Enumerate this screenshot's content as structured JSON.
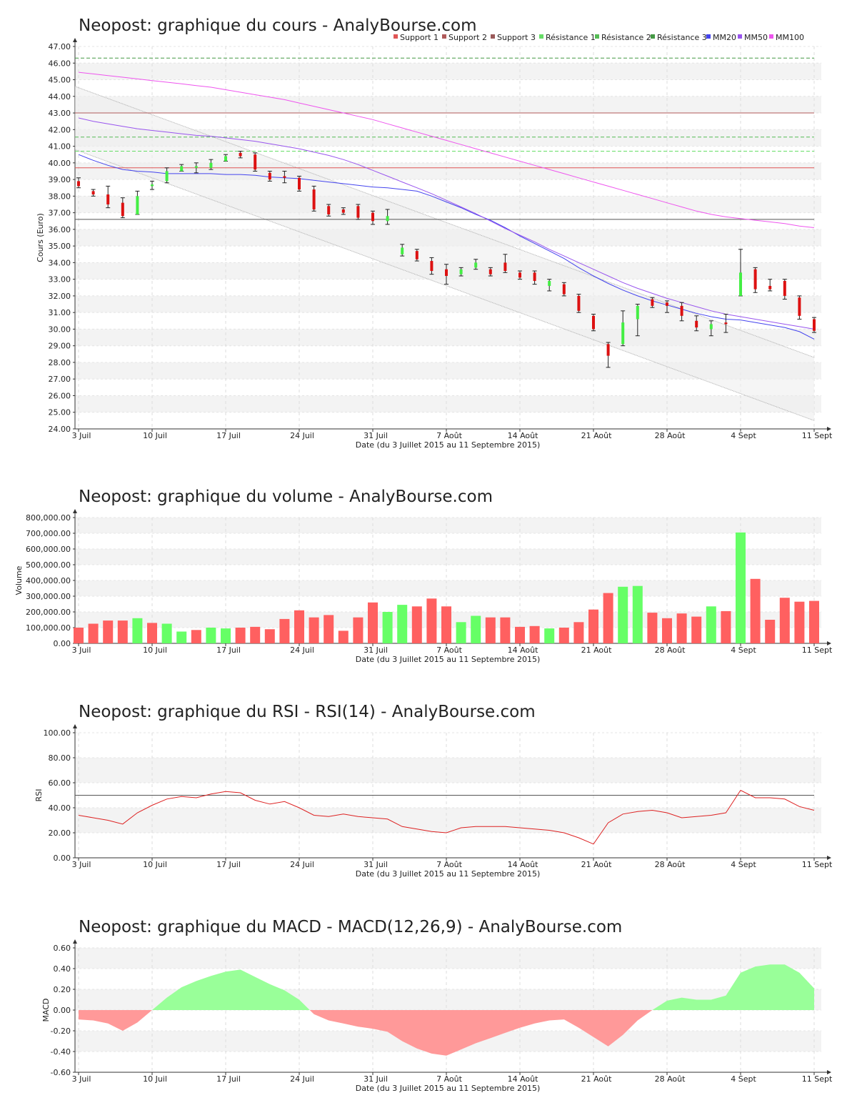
{
  "chart_data": [
    {
      "type": "candlestick",
      "title": "Neopost: graphique du cours - AnalyBourse.com",
      "xlabel": "Date (du 3 Juillet 2015 au 11 Septembre 2015)",
      "ylabel": "Cours (Euro)",
      "ylim": [
        24,
        47
      ],
      "y_ticks": [
        "24.00",
        "25.00",
        "26.00",
        "27.00",
        "28.00",
        "29.00",
        "30.00",
        "31.00",
        "32.00",
        "33.00",
        "34.00",
        "35.00",
        "36.00",
        "37.00",
        "38.00",
        "39.00",
        "40.00",
        "41.00",
        "42.00",
        "43.00",
        "44.00",
        "45.00",
        "46.00",
        "47.00"
      ],
      "x_ticks": [
        {
          "label": "3 Juil",
          "index": 0
        },
        {
          "label": "10 Juil",
          "index": 5
        },
        {
          "label": "17 Juil",
          "index": 10
        },
        {
          "label": "24 Juil",
          "index": 15
        },
        {
          "label": "31 Juil",
          "index": 20
        },
        {
          "label": "7 Août",
          "index": 25
        },
        {
          "label": "14 Août",
          "index": 30
        },
        {
          "label": "21 Août",
          "index": 35
        },
        {
          "label": "28 Août",
          "index": 40
        },
        {
          "label": "4 Sept",
          "index": 45
        },
        {
          "label": "11 Sept",
          "index": 50
        }
      ],
      "legend": [
        {
          "name": "Support 1",
          "color": "#e05555"
        },
        {
          "name": "Support 2",
          "color": "#b05a5a"
        },
        {
          "name": "Support 3",
          "color": "#9a5a5a"
        },
        {
          "name": "Résistance 1",
          "color": "#66dd66"
        },
        {
          "name": "Résistance 2",
          "color": "#55bb55"
        },
        {
          "name": "Résistance 3",
          "color": "#449944"
        },
        {
          "name": "MM20",
          "color": "#4444ee"
        },
        {
          "name": "MM50",
          "color": "#9955ee"
        },
        {
          "name": "MM100",
          "color": "#ee55ee"
        }
      ],
      "levels": {
        "support_1": 39.7,
        "support_2": 43.0,
        "support_3": 36.6,
        "resistance_1": 40.7,
        "resistance_2": 41.55,
        "resistance_3": 46.3
      },
      "colors": {
        "up": "#44ee44",
        "down": "#dd1111",
        "grid": "#cccccc",
        "band": "#f2f2f2"
      },
      "candles": [
        {
          "o": 38.9,
          "c": 38.6,
          "h": 39.1,
          "l": 38.5
        },
        {
          "o": 38.3,
          "c": 38.1,
          "h": 38.4,
          "l": 38.0
        },
        {
          "o": 38.1,
          "c": 37.5,
          "h": 38.6,
          "l": 37.3
        },
        {
          "o": 37.6,
          "c": 36.8,
          "h": 37.9,
          "l": 36.7
        },
        {
          "o": 36.9,
          "c": 38.0,
          "h": 38.3,
          "l": 36.9
        },
        {
          "o": 38.6,
          "c": 38.7,
          "h": 38.9,
          "l": 38.4
        },
        {
          "o": 38.9,
          "c": 39.5,
          "h": 39.7,
          "l": 38.8
        },
        {
          "o": 39.5,
          "c": 39.8,
          "h": 39.9,
          "l": 39.5
        },
        {
          "o": 39.7,
          "c": 39.8,
          "h": 40.0,
          "l": 39.4
        },
        {
          "o": 39.7,
          "c": 40.0,
          "h": 40.2,
          "l": 39.6
        },
        {
          "o": 40.1,
          "c": 40.4,
          "h": 40.5,
          "l": 40.1
        },
        {
          "o": 40.6,
          "c": 40.4,
          "h": 40.7,
          "l": 40.3
        },
        {
          "o": 40.5,
          "c": 39.6,
          "h": 40.6,
          "l": 39.5
        },
        {
          "o": 39.4,
          "c": 39.0,
          "h": 39.5,
          "l": 38.9
        },
        {
          "o": 39.2,
          "c": 39.1,
          "h": 39.5,
          "l": 38.8
        },
        {
          "o": 39.1,
          "c": 38.4,
          "h": 39.2,
          "l": 38.3
        },
        {
          "o": 38.4,
          "c": 37.2,
          "h": 38.6,
          "l": 37.1
        },
        {
          "o": 37.4,
          "c": 36.9,
          "h": 37.5,
          "l": 36.8
        },
        {
          "o": 37.2,
          "c": 37.0,
          "h": 37.3,
          "l": 36.9
        },
        {
          "o": 37.4,
          "c": 36.7,
          "h": 37.5,
          "l": 36.6
        },
        {
          "o": 37.0,
          "c": 36.5,
          "h": 37.1,
          "l": 36.3
        },
        {
          "o": 36.5,
          "c": 36.8,
          "h": 37.2,
          "l": 36.3
        },
        {
          "o": 34.5,
          "c": 34.9,
          "h": 35.1,
          "l": 34.4
        },
        {
          "o": 34.7,
          "c": 34.2,
          "h": 34.8,
          "l": 34.1
        },
        {
          "o": 34.1,
          "c": 33.5,
          "h": 34.3,
          "l": 33.3
        },
        {
          "o": 33.6,
          "c": 33.2,
          "h": 33.9,
          "l": 32.7
        },
        {
          "o": 33.3,
          "c": 33.6,
          "h": 33.7,
          "l": 33.2
        },
        {
          "o": 33.7,
          "c": 34.0,
          "h": 34.2,
          "l": 33.6
        },
        {
          "o": 33.6,
          "c": 33.3,
          "h": 33.7,
          "l": 33.2
        },
        {
          "o": 34.0,
          "c": 33.5,
          "h": 34.5,
          "l": 33.4
        },
        {
          "o": 33.4,
          "c": 33.1,
          "h": 33.5,
          "l": 33.0
        },
        {
          "o": 33.4,
          "c": 32.9,
          "h": 33.5,
          "l": 32.7
        },
        {
          "o": 32.6,
          "c": 32.9,
          "h": 33.0,
          "l": 32.3
        },
        {
          "o": 32.7,
          "c": 32.1,
          "h": 32.8,
          "l": 32.0
        },
        {
          "o": 32.0,
          "c": 31.1,
          "h": 32.1,
          "l": 31.0
        },
        {
          "o": 30.8,
          "c": 30.0,
          "h": 30.9,
          "l": 29.9
        },
        {
          "o": 29.1,
          "c": 28.4,
          "h": 29.2,
          "l": 27.7
        },
        {
          "o": 29.1,
          "c": 30.4,
          "h": 31.1,
          "l": 29.0
        },
        {
          "o": 30.6,
          "c": 31.4,
          "h": 31.5,
          "l": 29.6
        },
        {
          "o": 31.8,
          "c": 31.4,
          "h": 31.9,
          "l": 31.3
        },
        {
          "o": 31.6,
          "c": 31.4,
          "h": 31.7,
          "l": 31.0
        },
        {
          "o": 31.4,
          "c": 30.8,
          "h": 31.6,
          "l": 30.5
        },
        {
          "o": 30.5,
          "c": 30.1,
          "h": 30.8,
          "l": 29.9
        },
        {
          "o": 30.0,
          "c": 30.3,
          "h": 30.5,
          "l": 29.6
        },
        {
          "o": 30.4,
          "c": 30.3,
          "h": 30.9,
          "l": 29.8
        },
        {
          "o": 32.0,
          "c": 33.4,
          "h": 34.8,
          "l": 32.0
        },
        {
          "o": 33.6,
          "c": 32.4,
          "h": 33.7,
          "l": 32.2
        },
        {
          "o": 32.6,
          "c": 32.4,
          "h": 33.0,
          "l": 32.3
        },
        {
          "o": 32.9,
          "c": 32.0,
          "h": 33.0,
          "l": 31.8
        },
        {
          "o": 31.9,
          "c": 30.8,
          "h": 32.0,
          "l": 30.6
        },
        {
          "o": 30.6,
          "c": 29.9,
          "h": 30.7,
          "l": 29.8
        }
      ],
      "series": [
        {
          "name": "MM20",
          "color": "#4444ee",
          "values": [
            40.5,
            40.15,
            39.85,
            39.6,
            39.5,
            39.45,
            39.35,
            39.35,
            39.35,
            39.35,
            39.3,
            39.3,
            39.25,
            39.15,
            39.1,
            39.05,
            38.95,
            38.85,
            38.75,
            38.65,
            38.55,
            38.5,
            38.4,
            38.3,
            38.0,
            37.65,
            37.3,
            36.9,
            36.55,
            36.1,
            35.6,
            35.15,
            34.7,
            34.25,
            33.7,
            33.2,
            32.75,
            32.35,
            32.0,
            31.7,
            31.45,
            31.2,
            30.95,
            30.75,
            30.6,
            30.55,
            30.4,
            30.25,
            30.1,
            29.85,
            29.4
          ]
        },
        {
          "name": "MM50",
          "color": "#9955ee",
          "values": [
            42.7,
            42.5,
            42.35,
            42.2,
            42.05,
            41.95,
            41.85,
            41.75,
            41.65,
            41.6,
            41.5,
            41.4,
            41.3,
            41.15,
            41.0,
            40.85,
            40.65,
            40.45,
            40.2,
            39.9,
            39.55,
            39.2,
            38.85,
            38.5,
            38.15,
            37.75,
            37.35,
            36.95,
            36.5,
            36.05,
            35.65,
            35.25,
            34.8,
            34.4,
            34.0,
            33.6,
            33.2,
            32.8,
            32.45,
            32.15,
            31.85,
            31.6,
            31.35,
            31.1,
            30.9,
            30.75,
            30.6,
            30.45,
            30.3,
            30.15,
            30.0
          ]
        },
        {
          "name": "MM100",
          "color": "#ee55ee",
          "values": [
            45.45,
            45.35,
            45.25,
            45.15,
            45.05,
            44.95,
            44.85,
            44.75,
            44.65,
            44.55,
            44.4,
            44.25,
            44.1,
            43.95,
            43.8,
            43.6,
            43.4,
            43.2,
            43.0,
            42.8,
            42.6,
            42.35,
            42.1,
            41.85,
            41.6,
            41.35,
            41.1,
            40.85,
            40.6,
            40.35,
            40.1,
            39.85,
            39.6,
            39.35,
            39.1,
            38.85,
            38.6,
            38.35,
            38.1,
            37.85,
            37.6,
            37.35,
            37.1,
            36.9,
            36.75,
            36.65,
            36.55,
            36.45,
            36.35,
            36.2,
            36.1
          ]
        }
      ]
    },
    {
      "type": "bar",
      "title": "Neopost: graphique du volume - AnalyBourse.com",
      "xlabel": "Date (du 3 Juillet 2015 au 11 Septembre 2015)",
      "ylabel": "Volume",
      "ylim": [
        0,
        800000
      ],
      "y_ticks": [
        "0.00",
        "100,000.00",
        "200,000.00",
        "300,000.00",
        "400,000.00",
        "500,000.00",
        "600,000.00",
        "700,000.00",
        "800,000.00"
      ],
      "x_ticks": [
        {
          "label": "3 Juil",
          "index": 0
        },
        {
          "label": "10 Juil",
          "index": 5
        },
        {
          "label": "17 Juil",
          "index": 10
        },
        {
          "label": "24 Juil",
          "index": 15
        },
        {
          "label": "31 Juil",
          "index": 20
        },
        {
          "label": "7 Août",
          "index": 25
        },
        {
          "label": "14 Août",
          "index": 30
        },
        {
          "label": "21 Août",
          "index": 35
        },
        {
          "label": "28 Août",
          "index": 40
        },
        {
          "label": "4 Sept",
          "index": 45
        },
        {
          "label": "11 Sept",
          "index": 50
        }
      ],
      "colors": {
        "up": "#66ff66",
        "down": "#ff6060"
      },
      "values": [
        100000,
        125000,
        145000,
        145000,
        160000,
        130000,
        125000,
        75000,
        85000,
        100000,
        95000,
        100000,
        105000,
        90000,
        155000,
        210000,
        165000,
        180000,
        80000,
        165000,
        260000,
        200000,
        245000,
        235000,
        285000,
        235000,
        135000,
        175000,
        165000,
        165000,
        105000,
        110000,
        95000,
        100000,
        135000,
        215000,
        320000,
        360000,
        365000,
        195000,
        160000,
        190000,
        170000,
        235000,
        205000,
        705000,
        410000,
        150000,
        290000,
        265000,
        270000
      ],
      "direction": [
        "down",
        "down",
        "down",
        "down",
        "up",
        "down",
        "up",
        "up",
        "down",
        "up",
        "up",
        "down",
        "down",
        "down",
        "down",
        "down",
        "down",
        "down",
        "down",
        "down",
        "down",
        "up",
        "up",
        "down",
        "down",
        "down",
        "up",
        "up",
        "down",
        "down",
        "down",
        "down",
        "up",
        "down",
        "down",
        "down",
        "down",
        "up",
        "up",
        "down",
        "down",
        "down",
        "down",
        "up",
        "down",
        "up",
        "down",
        "down",
        "down",
        "down",
        "down"
      ]
    },
    {
      "type": "line",
      "title": "Neopost: graphique du RSI - RSI(14) - AnalyBourse.com",
      "xlabel": "Date (du 3 Juillet 2015 au 11 Septembre 2015)",
      "ylabel": "RSI",
      "ylim": [
        0,
        100
      ],
      "y_ticks": [
        "0.00",
        "20.00",
        "40.00",
        "60.00",
        "80.00",
        "100.00"
      ],
      "x_ticks": [
        {
          "label": "3 Juil",
          "index": 0
        },
        {
          "label": "10 Juil",
          "index": 5
        },
        {
          "label": "17 Juil",
          "index": 10
        },
        {
          "label": "24 Juil",
          "index": 15
        },
        {
          "label": "31 Juil",
          "index": 20
        },
        {
          "label": "7 Août",
          "index": 25
        },
        {
          "label": "14 Août",
          "index": 30
        },
        {
          "label": "21 Août",
          "index": 35
        },
        {
          "label": "28 Août",
          "index": 40
        },
        {
          "label": "4 Sept",
          "index": 45
        },
        {
          "label": "11 Sept",
          "index": 50
        }
      ],
      "reference_line": 50,
      "series": [
        {
          "name": "RSI",
          "color": "#dd2222",
          "values": [
            34,
            32,
            30,
            27,
            36,
            42,
            47,
            49,
            48,
            51,
            53,
            52,
            46,
            43,
            45,
            40,
            34,
            33,
            35,
            33,
            32,
            31,
            25,
            23,
            21,
            20,
            24,
            25,
            25,
            25,
            24,
            23,
            22,
            20,
            16,
            11,
            28,
            35,
            37,
            38,
            36,
            32,
            33,
            34,
            36,
            54,
            48,
            48,
            47,
            41,
            38
          ]
        }
      ]
    },
    {
      "type": "area",
      "title": "Neopost: graphique du MACD - MACD(12,26,9) - AnalyBourse.com",
      "xlabel": "Date (du 3 Juillet 2015 au 11 Septembre 2015)",
      "ylabel": "MACD",
      "ylim": [
        -0.6,
        0.6
      ],
      "y_ticks": [
        "-0.60",
        "-0.40",
        "-0.20",
        "0.00",
        "0.20",
        "0.40",
        "0.60"
      ],
      "x_ticks": [
        {
          "label": "3 Juil",
          "index": 0
        },
        {
          "label": "10 Juil",
          "index": 5
        },
        {
          "label": "17 Juil",
          "index": 10
        },
        {
          "label": "24 Juil",
          "index": 15
        },
        {
          "label": "31 Juil",
          "index": 20
        },
        {
          "label": "7 Août",
          "index": 25
        },
        {
          "label": "14 Août",
          "index": 30
        },
        {
          "label": "21 Août",
          "index": 35
        },
        {
          "label": "28 Août",
          "index": 40
        },
        {
          "label": "4 Sept",
          "index": 45
        },
        {
          "label": "11 Sept",
          "index": 50
        }
      ],
      "colors": {
        "positive": "#99ff99",
        "negative": "#ff9999"
      },
      "values": [
        -0.09,
        -0.1,
        -0.13,
        -0.2,
        -0.12,
        0.0,
        0.12,
        0.22,
        0.28,
        0.33,
        0.37,
        0.39,
        0.32,
        0.25,
        0.19,
        0.1,
        -0.04,
        -0.1,
        -0.13,
        -0.16,
        -0.18,
        -0.21,
        -0.3,
        -0.37,
        -0.42,
        -0.44,
        -0.38,
        -0.32,
        -0.27,
        -0.22,
        -0.17,
        -0.13,
        -0.1,
        -0.09,
        -0.17,
        -0.26,
        -0.35,
        -0.24,
        -0.1,
        0.0,
        0.09,
        0.12,
        0.1,
        0.1,
        0.14,
        0.36,
        0.42,
        0.44,
        0.44,
        0.36,
        0.21
      ]
    }
  ]
}
